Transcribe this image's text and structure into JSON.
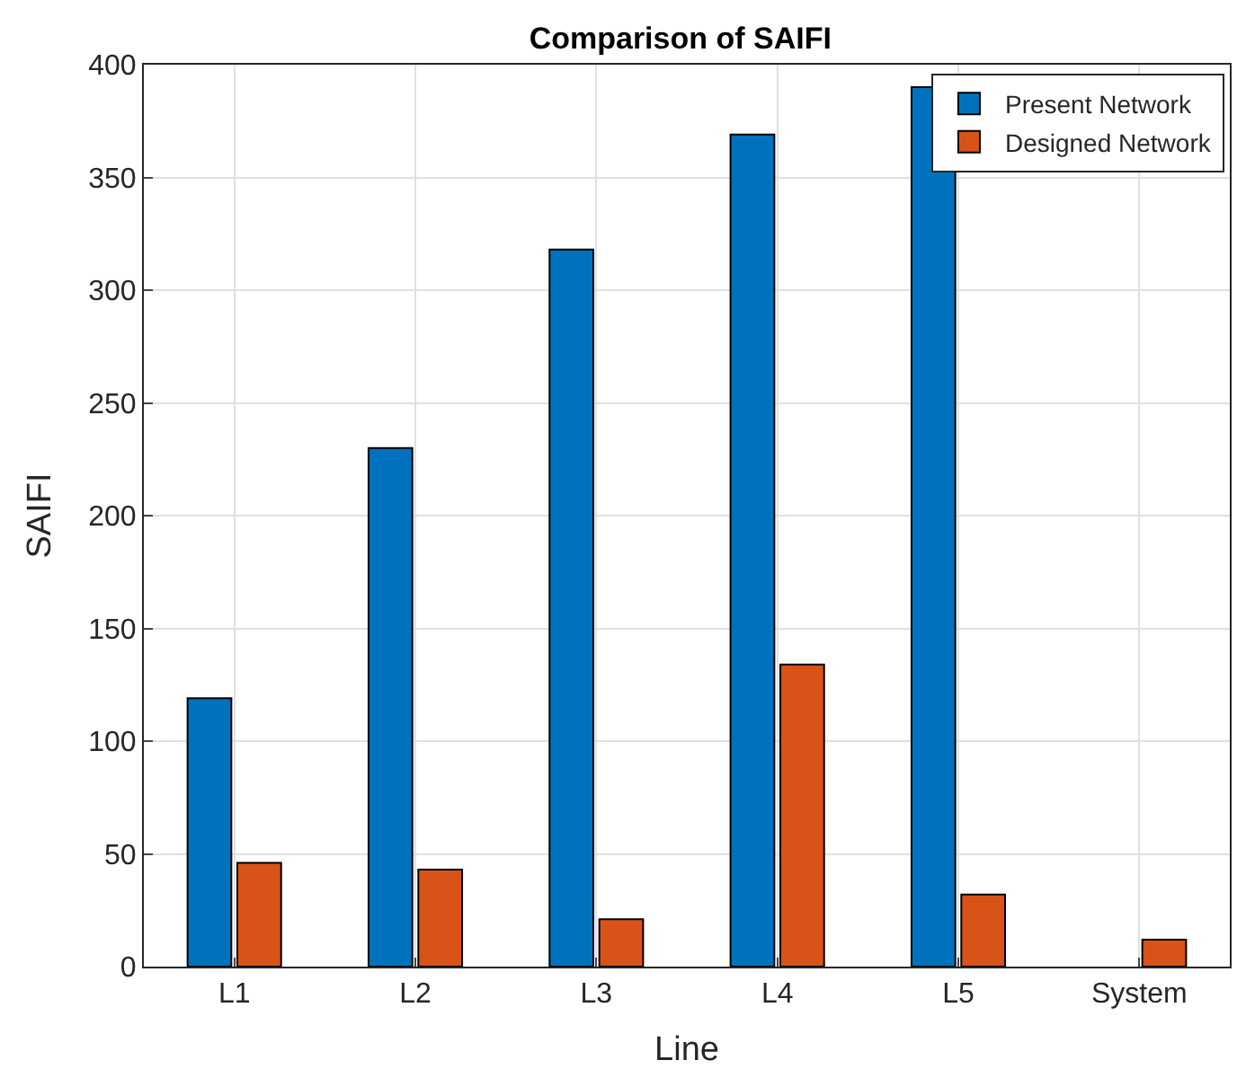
{
  "chart_data": {
    "type": "bar",
    "title": "Comparison of SAIFI",
    "xlabel": "Line",
    "ylabel": "SAIFI",
    "categories": [
      "L1",
      "L2",
      "L3",
      "L4",
      "L5",
      "System"
    ],
    "series": [
      {
        "name": "Present Network",
        "color": "#0072bd",
        "values": [
          119,
          230,
          318,
          369,
          390,
          null
        ]
      },
      {
        "name": "Designed Network",
        "color": "#d95319",
        "values": [
          46,
          43,
          21,
          134,
          32,
          12
        ]
      }
    ],
    "ylim": [
      0,
      400
    ],
    "yticks": [
      0,
      50,
      100,
      150,
      200,
      250,
      300,
      350,
      400
    ],
    "grid": true,
    "legend": "top right"
  }
}
